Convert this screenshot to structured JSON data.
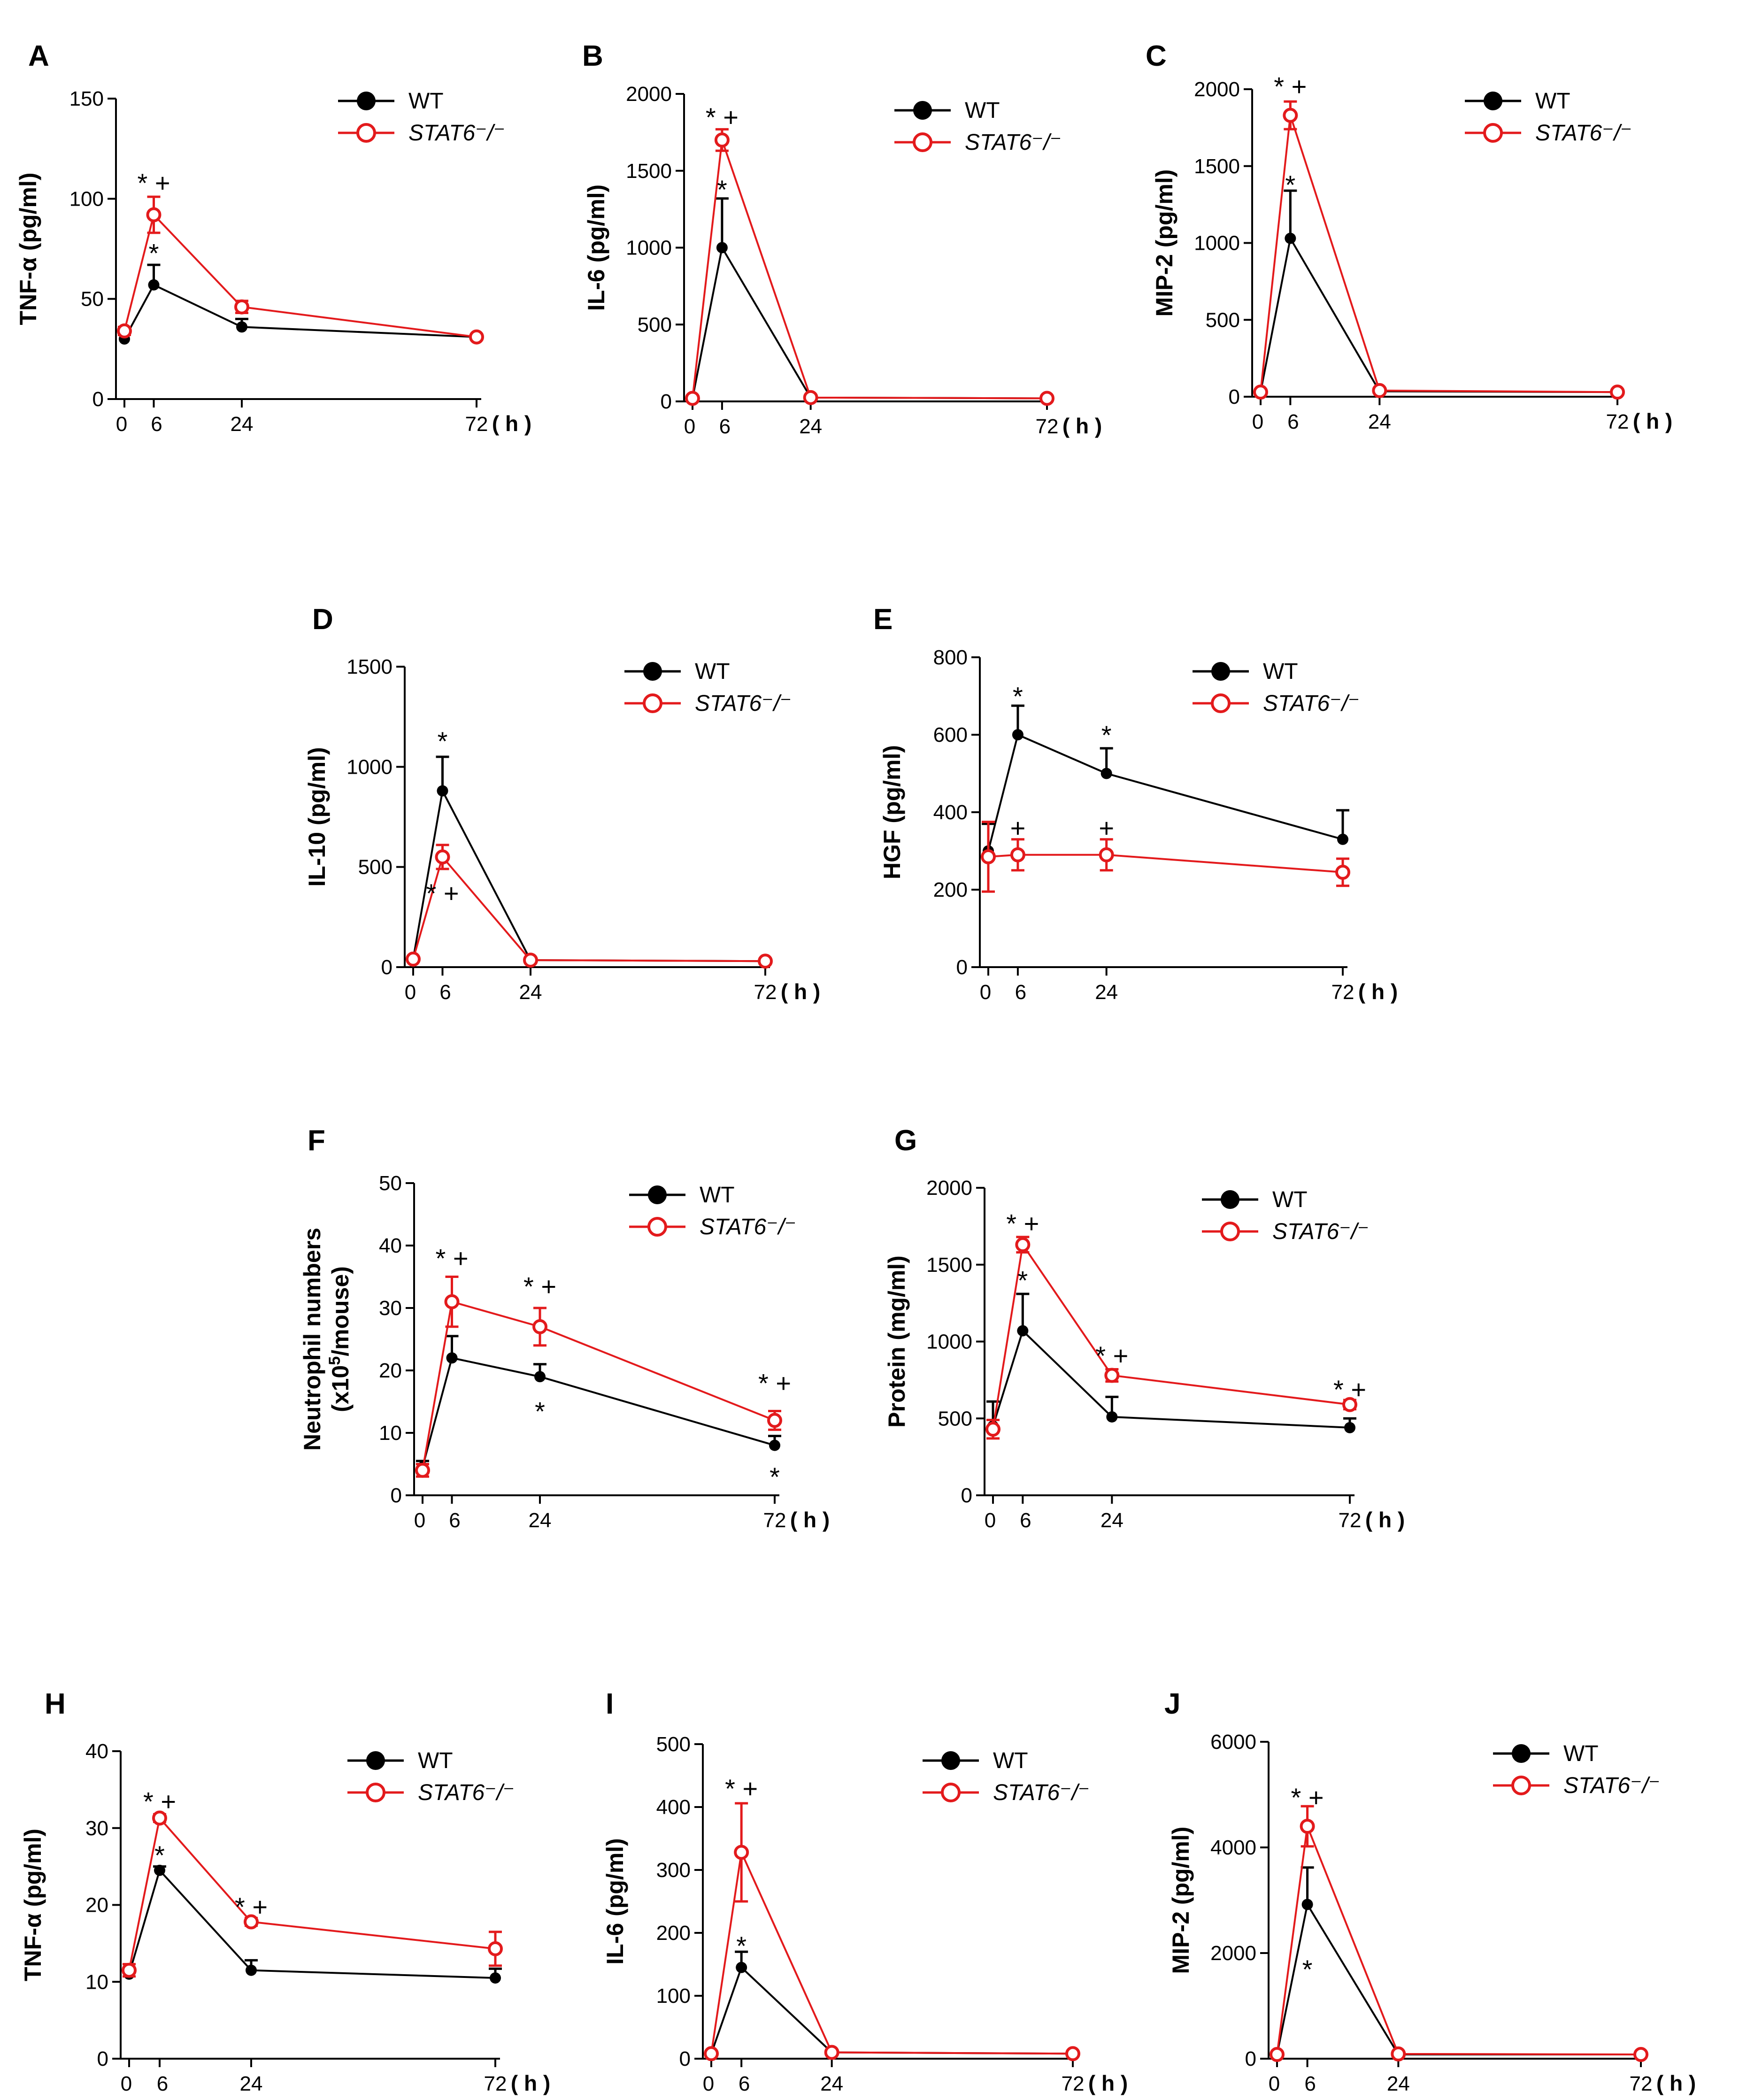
{
  "colors": {
    "wt": "#000000",
    "ko": "#e31a1c",
    "axis": "#000000"
  },
  "chart_data": [
    {
      "type": "line",
      "panel": "A",
      "ylabel": "TNF-α (pg/ml)",
      "xunit": "( h )",
      "x": [
        0,
        6,
        24,
        72
      ],
      "x_ticks": [
        "0",
        "6",
        "24",
        "72"
      ],
      "ylim": [
        0,
        150
      ],
      "y_ticks": [
        "0",
        "50",
        "100",
        "150"
      ],
      "legend": [
        "WT",
        "STAT6⁻/⁻"
      ],
      "series": [
        {
          "name": "WT",
          "values": [
            30,
            57,
            36,
            31
          ],
          "errors": [
            2,
            10,
            4,
            1
          ]
        },
        {
          "name": "STAT6⁻/⁻",
          "values": [
            34,
            92,
            46,
            31
          ],
          "errors": [
            2,
            9,
            3,
            1
          ]
        }
      ],
      "annotations": [
        {
          "text": "* +",
          "x": 6,
          "y": 108
        },
        {
          "text": "*",
          "x": 6,
          "y": 73
        }
      ]
    },
    {
      "type": "line",
      "panel": "B",
      "ylabel": "IL-6 (pg/ml)",
      "xunit": "( h )",
      "x": [
        0,
        6,
        24,
        72
      ],
      "x_ticks": [
        "0",
        "6",
        "24",
        "72"
      ],
      "ylim": [
        0,
        2000
      ],
      "y_ticks": [
        "0",
        "500",
        "1000",
        "1500",
        "2000"
      ],
      "legend": [
        "WT",
        "STAT6⁻/⁻"
      ],
      "series": [
        {
          "name": "WT",
          "values": [
            20,
            1000,
            25,
            20
          ],
          "errors": [
            5,
            320,
            5,
            5
          ]
        },
        {
          "name": "STAT6⁻/⁻",
          "values": [
            20,
            1700,
            25,
            20
          ],
          "errors": [
            5,
            70,
            5,
            5
          ]
        }
      ],
      "annotations": [
        {
          "text": "* +",
          "x": 6,
          "y": 1850
        },
        {
          "text": "*",
          "x": 6,
          "y": 1380
        }
      ]
    },
    {
      "type": "line",
      "panel": "C",
      "ylabel": "MIP-2 (pg/ml)",
      "xunit": "( h )",
      "x": [
        0,
        6,
        24,
        72
      ],
      "x_ticks": [
        "0",
        "6",
        "24",
        "72"
      ],
      "ylim": [
        0,
        2000
      ],
      "y_ticks": [
        "0",
        "500",
        "1000",
        "1500",
        "2000"
      ],
      "legend": [
        "WT",
        "STAT6⁻/⁻"
      ],
      "series": [
        {
          "name": "WT",
          "values": [
            30,
            1030,
            35,
            30
          ],
          "errors": [
            5,
            310,
            5,
            5
          ]
        },
        {
          "name": "STAT6⁻/⁻",
          "values": [
            30,
            1830,
            40,
            30
          ],
          "errors": [
            5,
            90,
            5,
            5
          ]
        }
      ],
      "annotations": [
        {
          "text": "* +",
          "x": 6,
          "y": 2020
        },
        {
          "text": "*",
          "x": 6,
          "y": 1380
        }
      ]
    },
    {
      "type": "line",
      "panel": "D",
      "ylabel": "IL-10 (pg/ml)",
      "xunit": "( h )",
      "x": [
        0,
        6,
        24,
        72
      ],
      "x_ticks": [
        "0",
        "6",
        "24",
        "72"
      ],
      "ylim": [
        0,
        1500
      ],
      "y_ticks": [
        "0",
        "500",
        "1000",
        "1500"
      ],
      "legend": [
        "WT",
        "STAT6⁻/⁻"
      ],
      "series": [
        {
          "name": "WT",
          "values": [
            40,
            880,
            35,
            30
          ],
          "errors": [
            5,
            170,
            5,
            5
          ]
        },
        {
          "name": "STAT6⁻/⁻",
          "values": [
            40,
            550,
            35,
            30
          ],
          "errors": [
            5,
            60,
            5,
            5
          ]
        }
      ],
      "annotations": [
        {
          "text": "*",
          "x": 6,
          "y": 1130
        },
        {
          "text": "* +",
          "x": 6,
          "y": 370
        }
      ]
    },
    {
      "type": "line",
      "panel": "E",
      "ylabel": "HGF (pg/ml)",
      "xunit": "( h )",
      "x": [
        0,
        6,
        24,
        72
      ],
      "x_ticks": [
        "0",
        "6",
        "24",
        "72"
      ],
      "ylim": [
        0,
        800
      ],
      "y_ticks": [
        "0",
        "200",
        "400",
        "600",
        "800"
      ],
      "legend": [
        "WT",
        "STAT6⁻/⁻"
      ],
      "series": [
        {
          "name": "WT",
          "values": [
            300,
            600,
            500,
            330
          ],
          "errors": [
            70,
            75,
            65,
            75
          ]
        },
        {
          "name": "STAT6⁻/⁻",
          "values": [
            285,
            290,
            290,
            245
          ],
          "errors": [
            90,
            40,
            40,
            35
          ]
        }
      ],
      "annotations": [
        {
          "text": "*",
          "x": 6,
          "y": 700
        },
        {
          "text": "+",
          "x": 6,
          "y": 360
        },
        {
          "text": "*",
          "x": 24,
          "y": 600
        },
        {
          "text": "+",
          "x": 24,
          "y": 360
        }
      ]
    },
    {
      "type": "line",
      "panel": "F",
      "ylabel": "Neutrophil numbers",
      "ylabel2": "(x10",
      "ylabel2_sup": "5",
      "ylabel2_rest": "/mouse)",
      "xunit": "( h )",
      "x": [
        0,
        6,
        24,
        72
      ],
      "x_ticks": [
        "0",
        "6",
        "24",
        "72"
      ],
      "ylim": [
        0,
        50
      ],
      "y_ticks": [
        "0",
        "10",
        "20",
        "30",
        "40",
        "50"
      ],
      "legend": [
        "WT",
        "STAT6⁻/⁻"
      ],
      "series": [
        {
          "name": "WT",
          "values": [
            4.5,
            22,
            19,
            8
          ],
          "errors": [
            1,
            3.5,
            2,
            1.5
          ]
        },
        {
          "name": "STAT6⁻/⁻",
          "values": [
            4,
            31,
            27,
            12
          ],
          "errors": [
            1,
            4,
            3,
            1.5
          ]
        }
      ],
      "annotations": [
        {
          "text": "* +",
          "x": 6,
          "y": 38
        },
        {
          "text": "* +",
          "x": 24,
          "y": 33.5
        },
        {
          "text": "*",
          "x": 24,
          "y": 13.5
        },
        {
          "text": "* +",
          "x": 72,
          "y": 18
        },
        {
          "text": "*",
          "x": 72,
          "y": 3
        }
      ]
    },
    {
      "type": "line",
      "panel": "G",
      "ylabel": "Protein (mg/ml)",
      "xunit": "( h )",
      "x": [
        0,
        6,
        24,
        72
      ],
      "x_ticks": [
        "0",
        "6",
        "24",
        "72"
      ],
      "ylim": [
        0,
        2000
      ],
      "y_ticks": [
        "0",
        "500",
        "1000",
        "1500",
        "2000"
      ],
      "legend": [
        "WT",
        "STAT6⁻/⁻"
      ],
      "series": [
        {
          "name": "WT",
          "values": [
            450,
            1070,
            510,
            440
          ],
          "errors": [
            160,
            240,
            130,
            60
          ]
        },
        {
          "name": "STAT6⁻/⁻",
          "values": [
            430,
            1630,
            780,
            590
          ],
          "errors": [
            60,
            50,
            40,
            30
          ]
        }
      ],
      "annotations": [
        {
          "text": "* +",
          "x": 6,
          "y": 1770
        },
        {
          "text": "*",
          "x": 6,
          "y": 1400
        },
        {
          "text": "* +",
          "x": 24,
          "y": 910
        },
        {
          "text": "* +",
          "x": 72,
          "y": 690
        }
      ]
    },
    {
      "type": "line",
      "panel": "H",
      "ylabel": "TNF-α (pg/ml)",
      "xunit": "( h )",
      "x": [
        0,
        6,
        24,
        72
      ],
      "x_ticks": [
        "0",
        "6",
        "24",
        "72"
      ],
      "ylim": [
        0,
        40
      ],
      "y_ticks": [
        "0",
        "10",
        "20",
        "30",
        "40"
      ],
      "legend": [
        "WT",
        "STAT6⁻/⁻"
      ],
      "series": [
        {
          "name": "WT",
          "values": [
            11,
            24.5,
            11.5,
            10.5
          ],
          "errors": [
            0.8,
            0.5,
            1.3,
            1.2
          ]
        },
        {
          "name": "STAT6⁻/⁻",
          "values": [
            11.5,
            31.3,
            17.8,
            14.3
          ],
          "errors": [
            0.8,
            0.5,
            0.5,
            2.2
          ]
        }
      ],
      "annotations": [
        {
          "text": "* +",
          "x": 6,
          "y": 33.5
        },
        {
          "text": "*",
          "x": 6,
          "y": 26.5
        },
        {
          "text": "* +",
          "x": 24,
          "y": 19.8
        }
      ]
    },
    {
      "type": "line",
      "panel": "I",
      "ylabel": "IL-6 (pg/ml)",
      "xunit": "( h )",
      "x": [
        0,
        6,
        24,
        72
      ],
      "x_ticks": [
        "0",
        "6",
        "24",
        "72"
      ],
      "ylim": [
        0,
        500
      ],
      "y_ticks": [
        "0",
        "100",
        "200",
        "300",
        "400",
        "500"
      ],
      "legend": [
        "WT",
        "STAT6⁻/⁻"
      ],
      "series": [
        {
          "name": "WT",
          "values": [
            8,
            145,
            10,
            8
          ],
          "errors": [
            2,
            25,
            2,
            2
          ]
        },
        {
          "name": "STAT6⁻/⁻",
          "values": [
            8,
            328,
            10,
            8
          ],
          "errors": [
            2,
            78,
            2,
            2
          ]
        }
      ],
      "annotations": [
        {
          "text": "* +",
          "x": 6,
          "y": 430
        },
        {
          "text": "*",
          "x": 6,
          "y": 180
        }
      ]
    },
    {
      "type": "line",
      "panel": "J",
      "ylabel": "MIP-2 (pg/ml)",
      "xunit": "( h )",
      "x": [
        0,
        6,
        24,
        72
      ],
      "x_ticks": [
        "0",
        "6",
        "24",
        "72"
      ],
      "ylim": [
        0,
        6000
      ],
      "y_ticks": [
        "0",
        "2000",
        "4000",
        "6000"
      ],
      "legend": [
        "WT",
        "STAT6⁻/⁻"
      ],
      "series": [
        {
          "name": "WT",
          "values": [
            80,
            2920,
            80,
            80
          ],
          "errors": [
            20,
            700,
            20,
            20
          ]
        },
        {
          "name": "STAT6⁻/⁻",
          "values": [
            80,
            4400,
            90,
            80
          ],
          "errors": [
            20,
            380,
            20,
            20
          ]
        }
      ],
      "annotations": [
        {
          "text": "* +",
          "x": 6,
          "y": 4950
        },
        {
          "text": "*",
          "x": 6,
          "y": 1700
        }
      ]
    }
  ]
}
